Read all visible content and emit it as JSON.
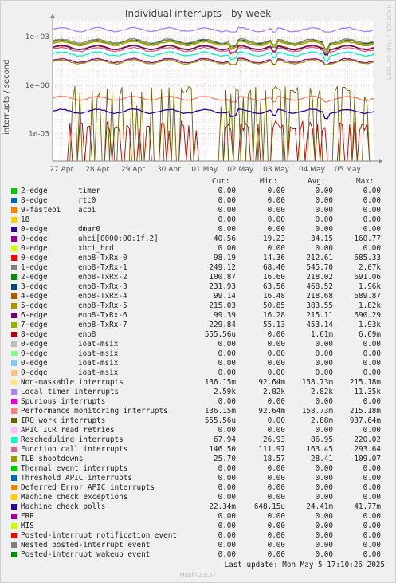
{
  "title": "Individual interrupts - by week",
  "watermark": "RRDTOOL / TOBI OETIKER",
  "headers": {
    "cur": "Cur:",
    "min": "Min:",
    "avg": "Avg:",
    "max": "Max:"
  },
  "footer": "Last update: Mon May  5 17:10:26 2025",
  "munin": "Munin 2.0.57",
  "chart_data": {
    "type": "line",
    "title": "Individual interrupts - by week",
    "ylabel": "interrupts / second",
    "y_scale": "log",
    "ylim": [
      2e-05,
      10000
    ],
    "y_ticks": [
      "1e+03",
      "1e+00",
      "1e-03"
    ],
    "y_tick_values": [
      1000,
      1,
      0.001
    ],
    "x_ticks": [
      "27 Apr",
      "28 Apr",
      "29 Apr",
      "30 Apr",
      "01 May",
      "02 May",
      "03 May",
      "04 May",
      "05 May"
    ],
    "x_range": [
      "26 Apr 17:00",
      "05 May 17:00"
    ],
    "grid": true,
    "legend_placement": "bottom",
    "series": [
      {
        "name": "2-edge",
        "irq": "timer",
        "color": "#00cc00",
        "cur": "0.00",
        "min": "0.00",
        "avg": "0.00",
        "max": "0.00"
      },
      {
        "name": "8-edge",
        "irq": "rtc0",
        "color": "#0066b3",
        "cur": "0.00",
        "min": "0.00",
        "avg": "0.00",
        "max": "0.00"
      },
      {
        "name": "9-fasteoi",
        "irq": "acpi",
        "color": "#ff8000",
        "cur": "0.00",
        "min": "0.00",
        "avg": "0.00",
        "max": "0.00"
      },
      {
        "name": "18",
        "irq": "",
        "color": "#ffcc00",
        "cur": "0.00",
        "min": "0.00",
        "avg": "0.00",
        "max": "0.00"
      },
      {
        "name": "0-edge",
        "irq": "dmar0",
        "color": "#330099",
        "cur": "0.00",
        "min": "0.00",
        "avg": "0.00",
        "max": "0.00"
      },
      {
        "name": "0-edge",
        "irq": "ahci[0000:00:1f.2]",
        "color": "#990099",
        "cur": "40.56",
        "min": "19.23",
        "avg": "34.15",
        "max": "160.77"
      },
      {
        "name": "0-edge",
        "irq": "xhci_hcd",
        "color": "#ccff00",
        "cur": "0.00",
        "min": "0.00",
        "avg": "0.00",
        "max": "0.00"
      },
      {
        "name": "0-edge",
        "irq": "eno8-TxRx-0",
        "color": "#ff0000",
        "cur": "98.19",
        "min": "14.36",
        "avg": "212.61",
        "max": "685.33"
      },
      {
        "name": "1-edge",
        "irq": "eno8-TxRx-1",
        "color": "#808080",
        "cur": "249.12",
        "min": "68.40",
        "avg": "545.70",
        "max": "2.07k"
      },
      {
        "name": "2-edge",
        "irq": "eno8-TxRx-2",
        "color": "#008f00",
        "cur": "100.87",
        "min": "16.60",
        "avg": "218.02",
        "max": "691.06"
      },
      {
        "name": "3-edge",
        "irq": "eno8-TxRx-3",
        "color": "#00487d",
        "cur": "231.93",
        "min": "63.56",
        "avg": "468.52",
        "max": "1.96k"
      },
      {
        "name": "4-edge",
        "irq": "eno8-TxRx-4",
        "color": "#b35a00",
        "cur": "99.14",
        "min": "16.48",
        "avg": "218.68",
        "max": "689.87"
      },
      {
        "name": "5-edge",
        "irq": "eno8-TxRx-5",
        "color": "#b38f00",
        "cur": "215.03",
        "min": "50.85",
        "avg": "383.55",
        "max": "1.82k"
      },
      {
        "name": "6-edge",
        "irq": "eno8-TxRx-6",
        "color": "#6b006b",
        "cur": "99.39",
        "min": "16.28",
        "avg": "215.11",
        "max": "690.29"
      },
      {
        "name": "7-edge",
        "irq": "eno8-TxRx-7",
        "color": "#8fb300",
        "cur": "229.84",
        "min": "55.13",
        "avg": "453.14",
        "max": "1.93k"
      },
      {
        "name": "8-edge",
        "irq": "eno8",
        "color": "#b30000",
        "cur": "555.56u",
        "min": "0.00",
        "avg": "1.61m",
        "max": "6.69m"
      },
      {
        "name": "0-edge",
        "irq": "ioat-msix",
        "color": "#bebebe",
        "cur": "0.00",
        "min": "0.00",
        "avg": "0.00",
        "max": "0.00"
      },
      {
        "name": "0-edge",
        "irq": "ioat-msix",
        "color": "#80ff80",
        "cur": "0.00",
        "min": "0.00",
        "avg": "0.00",
        "max": "0.00"
      },
      {
        "name": "0-edge",
        "irq": "ioat-msix",
        "color": "#80c9ff",
        "cur": "0.00",
        "min": "0.00",
        "avg": "0.00",
        "max": "0.00"
      },
      {
        "name": "0-edge",
        "irq": "ioat-msix",
        "color": "#ffc080",
        "cur": "0.00",
        "min": "0.00",
        "avg": "0.00",
        "max": "0.00"
      },
      {
        "name": "Non-maskable interrupts",
        "irq": "",
        "color": "#ffe680",
        "cur": "136.15m",
        "min": "92.64m",
        "avg": "158.73m",
        "max": "215.18m"
      },
      {
        "name": "Local timer interrupts",
        "irq": "",
        "color": "#aa80ff",
        "cur": "2.59k",
        "min": "2.02k",
        "avg": "2.82k",
        "max": "11.35k"
      },
      {
        "name": "Spurious interrupts",
        "irq": "",
        "color": "#ee00cc",
        "cur": "0.00",
        "min": "0.00",
        "avg": "0.00",
        "max": "0.00"
      },
      {
        "name": "Performance monitoring interrupts",
        "irq": "",
        "color": "#ff8080",
        "cur": "136.15m",
        "min": "92.64m",
        "avg": "158.73m",
        "max": "215.18m"
      },
      {
        "name": "IRQ work interrupts",
        "irq": "",
        "color": "#666600",
        "cur": "555.56u",
        "min": "0.00",
        "avg": "2.88m",
        "max": "937.64m"
      },
      {
        "name": "APIC ICR read retries",
        "irq": "",
        "color": "#ffbfff",
        "cur": "0.00",
        "min": "0.00",
        "avg": "0.00",
        "max": "0.00"
      },
      {
        "name": "Rescheduling interrupts",
        "irq": "",
        "color": "#00ffcc",
        "cur": "67.94",
        "min": "26.93",
        "avg": "86.95",
        "max": "220.02"
      },
      {
        "name": "Function call interrupts",
        "irq": "",
        "color": "#cc6699",
        "cur": "146.50",
        "min": "111.97",
        "avg": "163.45",
        "max": "293.64"
      },
      {
        "name": "TLB shootdowns",
        "irq": "",
        "color": "#999900",
        "cur": "25.70",
        "min": "18.57",
        "avg": "28.41",
        "max": "109.07"
      },
      {
        "name": "Thermal event interrupts",
        "irq": "",
        "color": "#00cc00",
        "cur": "0.00",
        "min": "0.00",
        "avg": "0.00",
        "max": "0.00"
      },
      {
        "name": "Threshold APIC interrupts",
        "irq": "",
        "color": "#0066b3",
        "cur": "0.00",
        "min": "0.00",
        "avg": "0.00",
        "max": "0.00"
      },
      {
        "name": "Deferred Error APIC interrupts",
        "irq": "",
        "color": "#ff8000",
        "cur": "0.00",
        "min": "0.00",
        "avg": "0.00",
        "max": "0.00"
      },
      {
        "name": "Machine check exceptions",
        "irq": "",
        "color": "#ffcc00",
        "cur": "0.00",
        "min": "0.00",
        "avg": "0.00",
        "max": "0.00"
      },
      {
        "name": "Machine check polls",
        "irq": "",
        "color": "#330099",
        "cur": "22.34m",
        "min": "648.15u",
        "avg": "24.41m",
        "max": "41.77m"
      },
      {
        "name": "ERR",
        "irq": "",
        "color": "#990099",
        "cur": "0.00",
        "min": "0.00",
        "avg": "0.00",
        "max": "0.00"
      },
      {
        "name": "MIS",
        "irq": "",
        "color": "#ccff00",
        "cur": "0.00",
        "min": "0.00",
        "avg": "0.00",
        "max": "0.00"
      },
      {
        "name": "Posted-interrupt notification event",
        "irq": "",
        "color": "#ff0000",
        "cur": "0.00",
        "min": "0.00",
        "avg": "0.00",
        "max": "0.00"
      },
      {
        "name": "Nested posted-interrupt event",
        "irq": "",
        "color": "#808080",
        "cur": "0.00",
        "min": "0.00",
        "avg": "0.00",
        "max": "0.00"
      },
      {
        "name": "Posted-interrupt wakeup event",
        "irq": "",
        "color": "#008f00",
        "cur": "0.00",
        "min": "0.00",
        "avg": "0.00",
        "max": "0.00"
      }
    ]
  }
}
